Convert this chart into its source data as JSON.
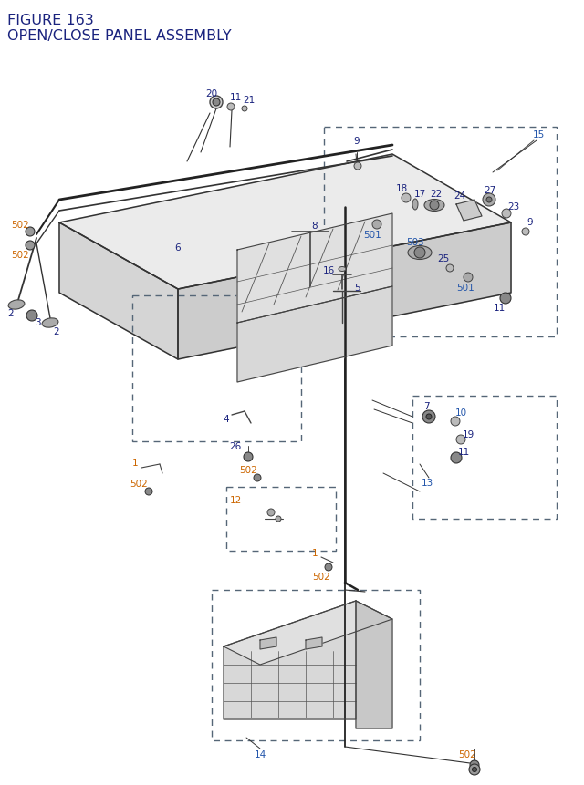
{
  "title_line1": "FIGURE 163",
  "title_line2": "OPEN/CLOSE PANEL ASSEMBLY",
  "title_color": "#1a237e",
  "title_fontsize": 11,
  "bg_color": "#ffffff",
  "dc": "#1a237e",
  "oc": "#cc6600",
  "bc": "#2255aa",
  "lc": "#333333",
  "dbc": "#556677",
  "fs": 7.5
}
